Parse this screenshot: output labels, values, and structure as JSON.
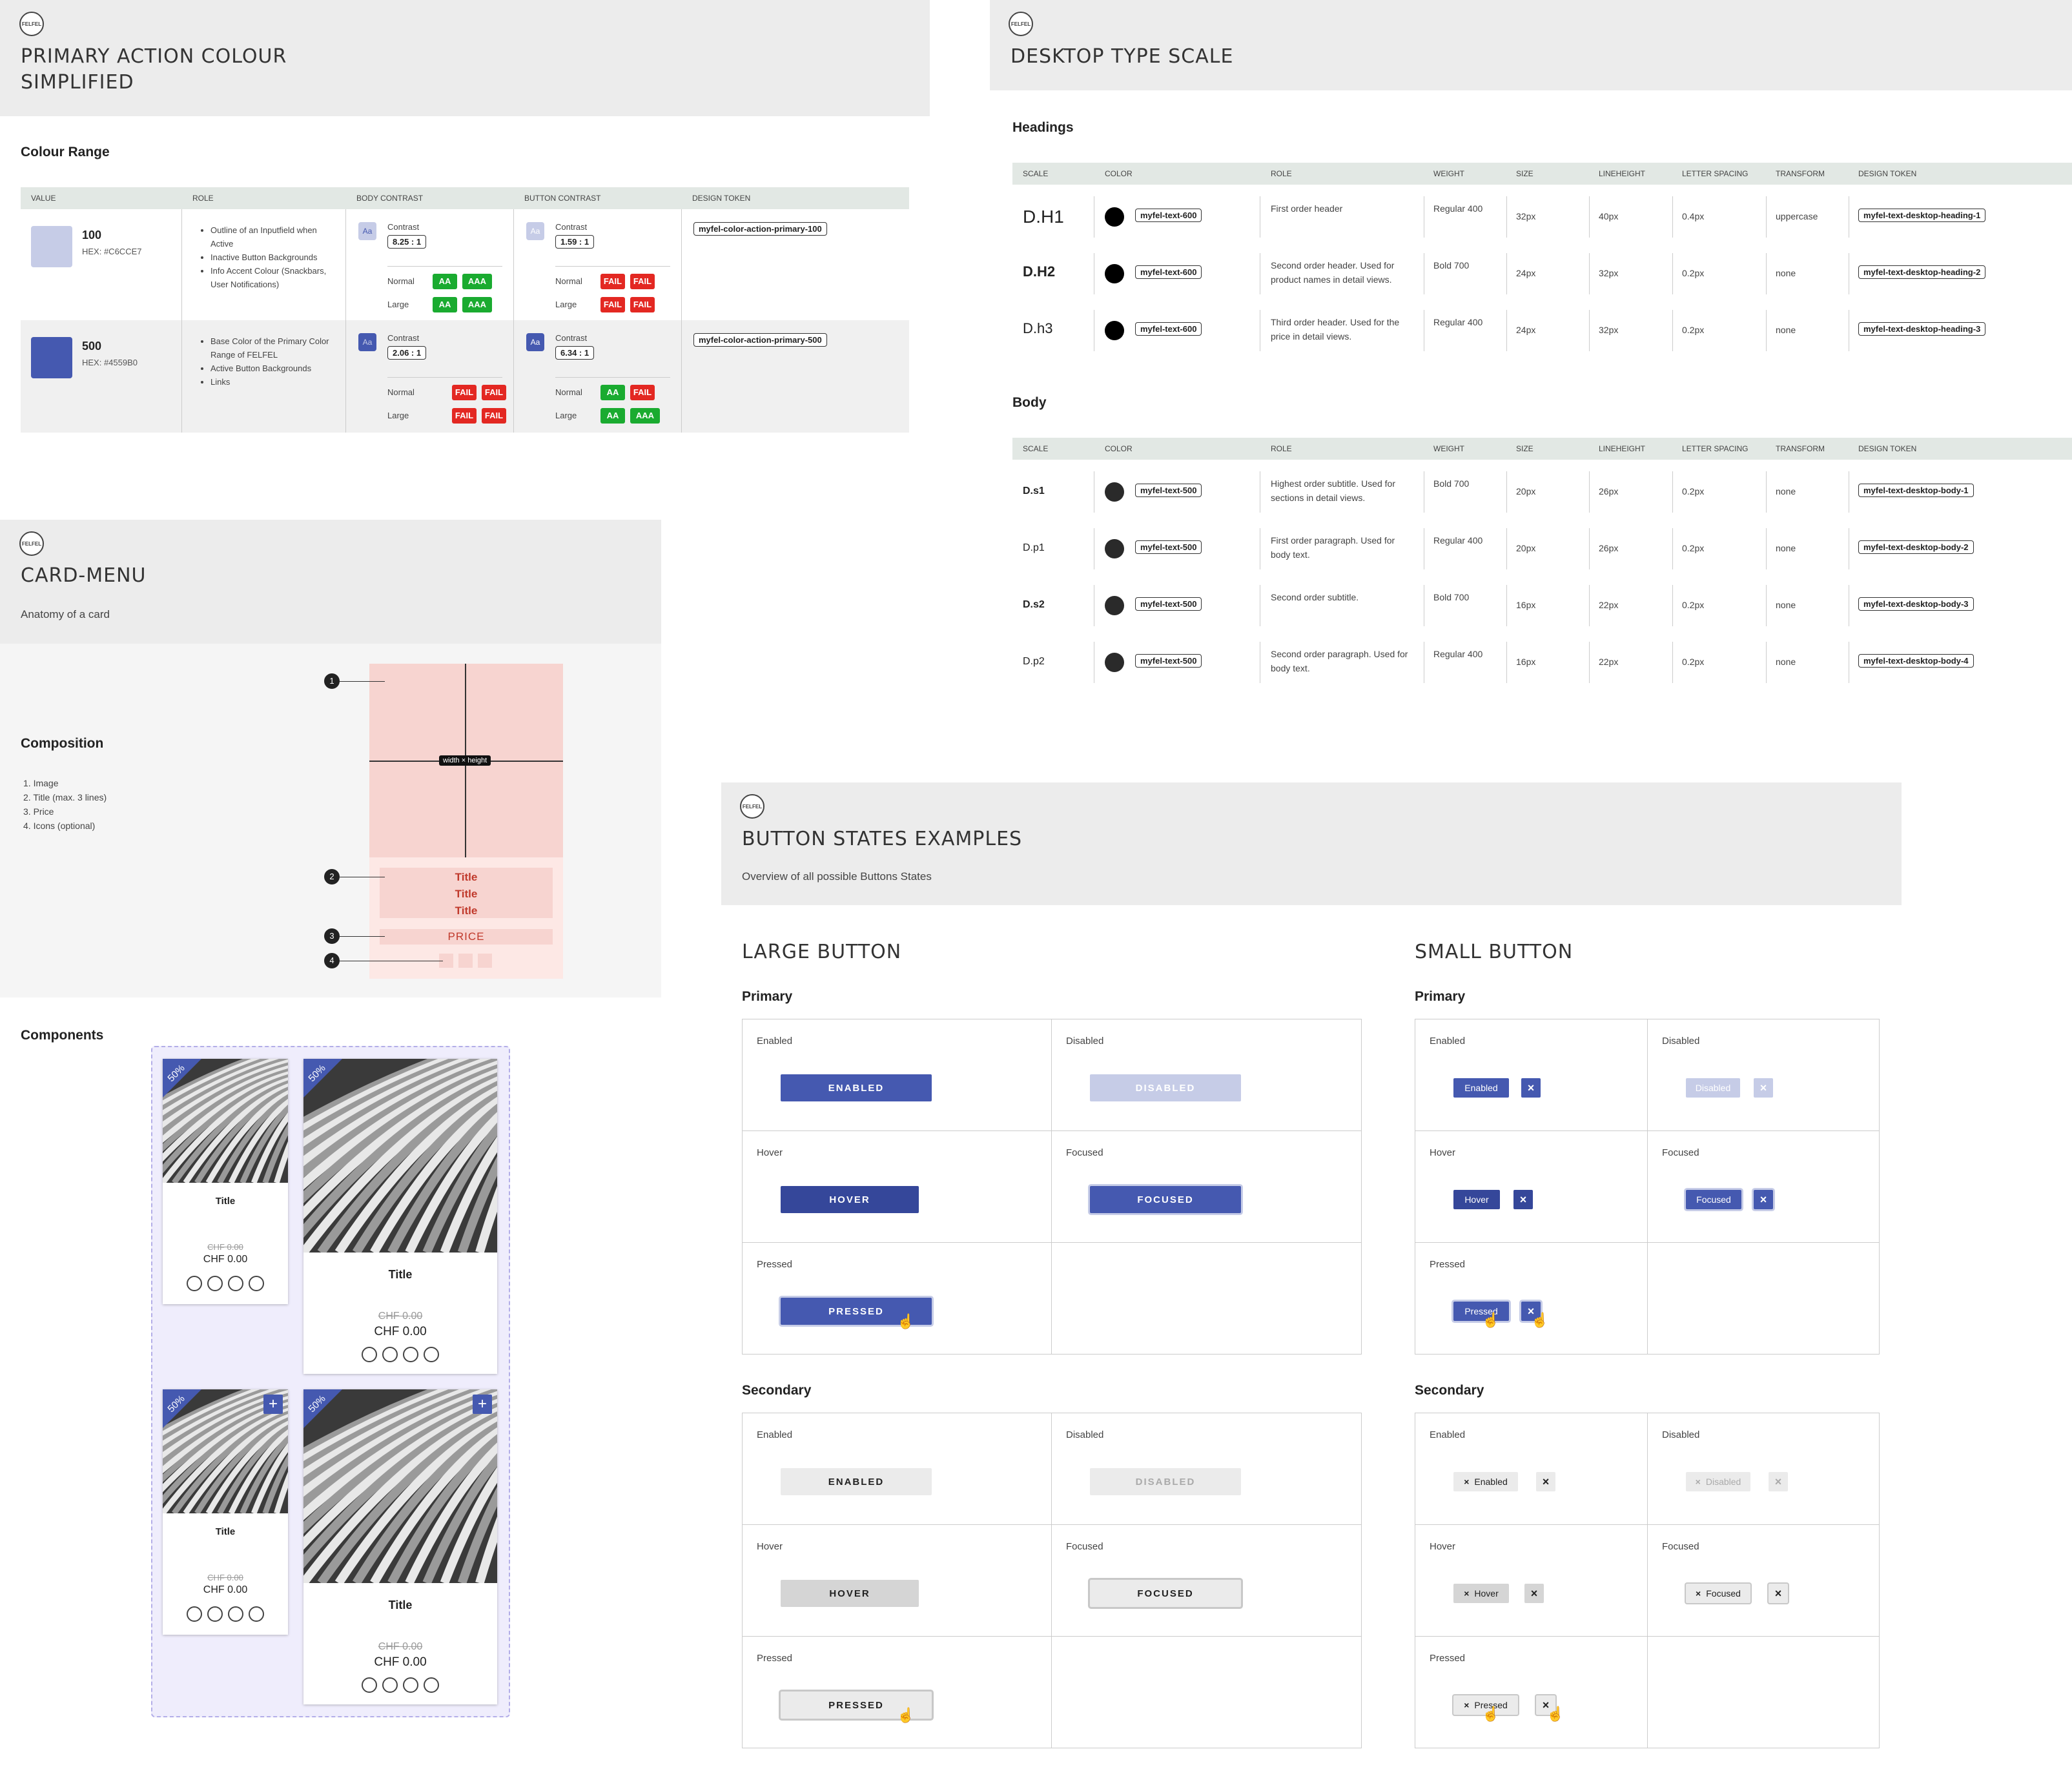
{
  "logo_text": "FELFEL",
  "colour": {
    "title_line1": "PRIMARY ACTION COLOUR",
    "title_line2": "SIMPLIFIED",
    "section": "Colour Range",
    "headers": [
      "VALUE",
      "ROLE",
      "BODY CONTRAST",
      "BUTTON CONTRAST",
      "DESIGN TOKEN"
    ],
    "rows": [
      {
        "value": "100",
        "hex": "HEX: #C6CCE7",
        "swatch": "#c6cce7",
        "roles": [
          "Outline of an Inputfield when Active",
          "Inactive Button Backgrounds",
          "Info Accent Colour (Snackbars, User Notifications)"
        ],
        "body_contrast": "8.25 : 1",
        "body_normal": [
          "AA",
          "AAA"
        ],
        "body_large": [
          "AA",
          "AAA"
        ],
        "btn_contrast": "1.59 : 1",
        "btn_normal": [
          "FAIL",
          "FAIL"
        ],
        "btn_large": [
          "FAIL",
          "FAIL"
        ],
        "token": "myfel-color-action-primary-100"
      },
      {
        "value": "500",
        "hex": "HEX: #4559B0",
        "swatch": "#4559b0",
        "roles": [
          "Base Color of the Primary Color Range of FELFEL",
          "Active Button Backgrounds",
          "Links"
        ],
        "body_contrast": "2.06 : 1",
        "body_normal": [
          "FAIL",
          "FAIL"
        ],
        "body_large": [
          "FAIL",
          "FAIL"
        ],
        "btn_contrast": "6.34 : 1",
        "btn_normal": [
          "AA",
          "FAIL"
        ],
        "btn_large": [
          "AA",
          "AAA"
        ],
        "token": "myfel-color-action-primary-500"
      }
    ],
    "contrast_label": "Contrast",
    "normal_label": "Normal",
    "large_label": "Large",
    "aa_icon": "Aa"
  },
  "type": {
    "title": "DESKTOP TYPE SCALE",
    "headings_label": "Headings",
    "body_label": "Body",
    "headers": [
      "SCALE",
      "COLOR",
      "ROLE",
      "WEIGHT",
      "SIZE",
      "LINEHEIGHT",
      "LETTER SPACING",
      "TRANSFORM",
      "DESIGN TOKEN"
    ],
    "headings": [
      {
        "scale": "D.H1",
        "color_token": "myfel-text-600",
        "role": "First order header",
        "weight": "Regular 400",
        "size": "32px",
        "lh": "40px",
        "ls": "0.4px",
        "transform": "uppercase",
        "token": "myfel-text-desktop-heading-1"
      },
      {
        "scale": "D.H2",
        "color_token": "myfel-text-600",
        "role": "Second order header. Used for product names in detail views.",
        "weight": "Bold 700",
        "size": "24px",
        "lh": "32px",
        "ls": "0.2px",
        "transform": "none",
        "token": "myfel-text-desktop-heading-2"
      },
      {
        "scale": "D.h3",
        "color_token": "myfel-text-600",
        "role": "Third order header. Used for the price in detail views.",
        "weight": "Regular 400",
        "size": "24px",
        "lh": "32px",
        "ls": "0.2px",
        "transform": "none",
        "token": "myfel-text-desktop-heading-3"
      }
    ],
    "body": [
      {
        "scale": "D.s1",
        "color_token": "myfel-text-500",
        "role": "Highest order subtitle. Used for sections in detail views.",
        "weight": "Bold 700",
        "size": "20px",
        "lh": "26px",
        "ls": "0.2px",
        "transform": "none",
        "token": "myfel-text-desktop-body-1"
      },
      {
        "scale": "D.p1",
        "color_token": "myfel-text-500",
        "role": "First order paragraph. Used for body text.",
        "weight": "Regular 400",
        "size": "20px",
        "lh": "26px",
        "ls": "0.2px",
        "transform": "none",
        "token": "myfel-text-desktop-body-2"
      },
      {
        "scale": "D.s2",
        "color_token": "myfel-text-500",
        "role": "Second order subtitle.",
        "weight": "Bold 700",
        "size": "16px",
        "lh": "22px",
        "ls": "0.2px",
        "transform": "none",
        "token": "myfel-text-desktop-body-3"
      },
      {
        "scale": "D.p2",
        "color_token": "myfel-text-500",
        "role": "Second order paragraph. Used for body text.",
        "weight": "Regular 400",
        "size": "16px",
        "lh": "22px",
        "ls": "0.2px",
        "transform": "none",
        "token": "myfel-text-desktop-body-4"
      }
    ]
  },
  "card": {
    "title": "CARD-MENU",
    "subtitle": "Anatomy of a card",
    "composition": "Composition",
    "items": [
      "1. Image",
      "2. Title (max. 3 lines)",
      "3. Price",
      "4. Icons (optional)"
    ],
    "dimension_label": "width × height",
    "title_lines": [
      "Title",
      "Title",
      "Title"
    ],
    "price_label": "PRICE",
    "numbers": [
      "1",
      "2",
      "3",
      "4"
    ],
    "components": "Components",
    "discount": "50%",
    "card_title": "Title",
    "old_price": "CHF 0.00",
    "price": "CHF 0.00",
    "plus": "+"
  },
  "buttons": {
    "title": "BUTTON STATES EXAMPLES",
    "subtitle": "Overview of all possible Buttons States",
    "large": "LARGE BUTTON",
    "small": "SMALL BUTTON",
    "primary": "Primary",
    "secondary": "Secondary",
    "states": {
      "enabled": "Enabled",
      "disabled": "Disabled",
      "hover": "Hover",
      "focused": "Focused",
      "pressed": "Pressed"
    },
    "large_labels": {
      "enabled": "ENABLED",
      "disabled": "DISABLED",
      "hover": "HOVER",
      "focused": "FOCUSED",
      "pressed": "PRESSED"
    },
    "small_labels": {
      "enabled": "Enabled",
      "disabled": "Disabled",
      "hover": "Hover",
      "focused": "Focused",
      "pressed": "Pressed"
    },
    "close_glyph": "×"
  },
  "colors": {
    "primary": "#4559b0",
    "primary_hover": "#35479a",
    "primary_light": "#c6cce7",
    "pass": "#1aab30",
    "fail": "#e32822",
    "card_anatomy": "#f7d4d0"
  }
}
